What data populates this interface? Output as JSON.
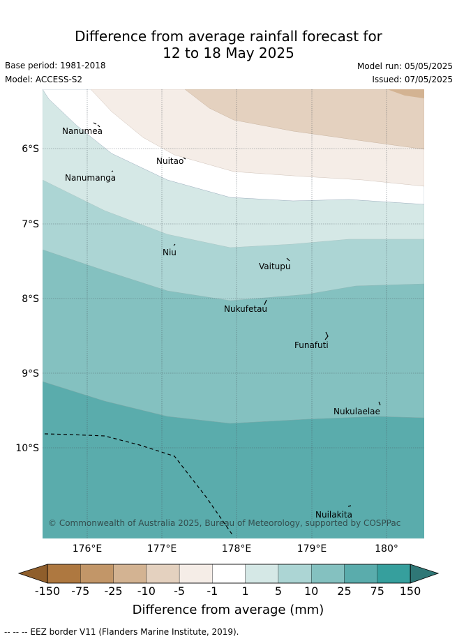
{
  "header": {
    "title_line1": "Difference from average rainfall forecast for",
    "title_line2": "12 to 18 May 2025",
    "base_period": "Base period: 1981-2018",
    "model": "Model: ACCESS-S2",
    "model_run": "Model run: 05/05/2025",
    "issued": "Issued: 07/05/2025"
  },
  "map": {
    "lat_ticks": [
      "6°S",
      "7°S",
      "8°S",
      "9°S",
      "10°S"
    ],
    "lon_ticks": [
      "176°E",
      "177°E",
      "178°E",
      "179°E",
      "180°"
    ],
    "places": [
      "Nanumea",
      "Nuitao",
      "Nanumanga",
      "Niu",
      "Vaitupu",
      "Nukufetau",
      "Funafuti",
      "Nukulaelae",
      "Nuilakita"
    ],
    "copyright": "© Commonwealth of Australia 2025, Bureau of Meteorology, supported by COSPPac"
  },
  "colorbar": {
    "ticks": [
      "-150",
      "-75",
      "-25",
      "-10",
      "-5",
      "-1",
      "1",
      "5",
      "10",
      "25",
      "75",
      "150"
    ],
    "colors": [
      "#ae7840",
      "#c29668",
      "#d3b392",
      "#e4d1bf",
      "#f5ede7",
      "#ffffff",
      "#d5e8e6",
      "#acd5d4",
      "#84c1c0",
      "#5aacac",
      "#369f9d"
    ],
    "under_color": "#8f5e2b",
    "over_color": "#2f7776",
    "label": "Difference from average (mm)"
  },
  "legend": {
    "eez": "-- -- -- EEZ border V11 (Flanders Marine Institute, 2019)."
  }
}
